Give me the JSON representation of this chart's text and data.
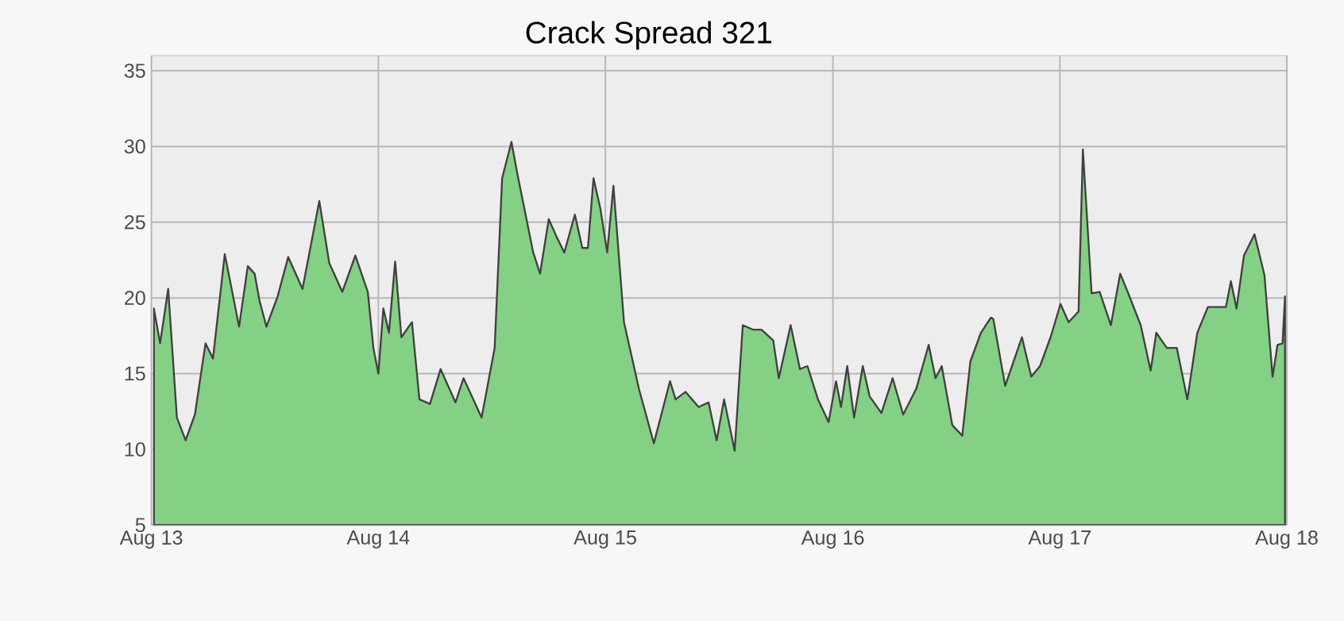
{
  "chart_data": {
    "type": "area",
    "title": "Crack Spread 321",
    "x": [
      "2013-08-05",
      "2013-08-15",
      "2013-08-28",
      "2013-09-11",
      "2013-09-25",
      "2013-10-10",
      "2013-10-27",
      "2013-11-08",
      "2013-11-27",
      "2013-12-20",
      "2014-01-03",
      "2014-01-14",
      "2014-01-22",
      "2014-02-02",
      "2014-02-20",
      "2014-03-09",
      "2014-04-01",
      "2014-04-28",
      "2014-05-14",
      "2014-06-04",
      "2014-06-25",
      "2014-07-15",
      "2014-07-24",
      "2014-08-01",
      "2014-08-09",
      "2014-08-18",
      "2014-08-28",
      "2014-09-07",
      "2014-09-24",
      "2014-10-06",
      "2014-10-23",
      "2014-11-09",
      "2014-12-03",
      "2014-12-16",
      "2015-01-14",
      "2015-02-04",
      "2015-02-16",
      "2015-03-03",
      "2015-03-13",
      "2015-04-07",
      "2015-04-18",
      "2015-05-02",
      "2015-05-15",
      "2015-05-27",
      "2015-06-13",
      "2015-06-25",
      "2015-07-04",
      "2015-07-13",
      "2015-07-24",
      "2015-08-04",
      "2015-08-14",
      "2015-08-31",
      "2015-09-24",
      "2015-10-18",
      "2015-11-13",
      "2015-11-22",
      "2015-12-08",
      "2015-12-29",
      "2016-01-14",
      "2016-01-27",
      "2016-02-08",
      "2016-02-25",
      "2016-03-09",
      "2016-03-26",
      "2016-04-08",
      "2016-04-27",
      "2016-05-06",
      "2016-05-25",
      "2016-06-09",
      "2016-06-21",
      "2016-07-08",
      "2016-07-25",
      "2016-08-06",
      "2016-08-14",
      "2016-08-24",
      "2016-09-04",
      "2016-09-18",
      "2016-09-29",
      "2016-10-18",
      "2016-11-05",
      "2016-11-22",
      "2016-12-13",
      "2017-01-02",
      "2017-01-13",
      "2017-01-23",
      "2017-02-09",
      "2017-02-25",
      "2017-03-10",
      "2017-03-27",
      "2017-04-12",
      "2017-04-16",
      "2017-05-05",
      "2017-06-01",
      "2017-06-16",
      "2017-06-30",
      "2017-07-17",
      "2017-08-02",
      "2017-08-15",
      "2017-08-31",
      "2017-09-07",
      "2017-09-21",
      "2017-10-04",
      "2017-10-22",
      "2017-11-06",
      "2017-11-18",
      "2017-12-09",
      "2017-12-25",
      "2018-01-03",
      "2018-01-20",
      "2018-02-05",
      "2018-02-22",
      "2018-03-10",
      "2018-03-27",
      "2018-04-25",
      "2018-05-03",
      "2018-05-12",
      "2018-05-24",
      "2018-06-10",
      "2018-06-26",
      "2018-07-09",
      "2018-07-17",
      "2018-07-25",
      "2018-07-29"
    ],
    "series": [
      {
        "color": "#84d084",
        "values": [
          19.3,
          17.0,
          20.6,
          12.1,
          10.6,
          12.3,
          17.0,
          16.0,
          22.9,
          18.1,
          22.1,
          21.6,
          19.8,
          18.1,
          20.1,
          22.7,
          20.6,
          26.4,
          22.3,
          20.4,
          22.8,
          20.4,
          16.7,
          15.0,
          19.3,
          17.7,
          22.4,
          17.4,
          18.4,
          13.3,
          13.0,
          15.3,
          13.1,
          14.7,
          12.1,
          16.7,
          27.9,
          30.3,
          28.1,
          23.0,
          21.6,
          25.2,
          24.0,
          23.0,
          25.5,
          23.3,
          23.3,
          27.9,
          25.9,
          23.0,
          27.4,
          18.4,
          14.0,
          10.4,
          14.5,
          13.3,
          13.8,
          12.8,
          13.1,
          10.6,
          13.3,
          9.9,
          18.2,
          17.9,
          17.9,
          17.2,
          14.7,
          18.2,
          15.3,
          15.5,
          13.3,
          11.8,
          14.5,
          12.8,
          15.5,
          12.1,
          15.5,
          13.5,
          12.4,
          14.7,
          12.3,
          14.0,
          16.9,
          14.7,
          15.5,
          11.6,
          10.9,
          15.8,
          17.7,
          18.7,
          18.6,
          14.2,
          17.4,
          14.8,
          15.5,
          17.4,
          19.6,
          18.4,
          19.1,
          29.8,
          20.3,
          20.4,
          18.2,
          21.6,
          20.4,
          18.2,
          15.2,
          17.7,
          16.7,
          16.7,
          13.3,
          17.7,
          19.4,
          19.4,
          21.1,
          19.3,
          22.8,
          24.2,
          21.5,
          14.8,
          16.9,
          17.0,
          20.1
        ]
      }
    ],
    "xlim": [
      "2013-08-01",
      "2018-08-01"
    ],
    "xticks": [
      {
        "value": "2013-08-01",
        "label": "Aug 13"
      },
      {
        "value": "2014-08-01",
        "label": "Aug 14"
      },
      {
        "value": "2015-08-01",
        "label": "Aug 15"
      },
      {
        "value": "2016-08-01",
        "label": "Aug 16"
      },
      {
        "value": "2017-08-01",
        "label": "Aug 17"
      },
      {
        "value": "2018-08-01",
        "label": "Aug 18"
      }
    ],
    "ylim": [
      5,
      36
    ],
    "yticks": [
      5,
      10,
      15,
      20,
      25,
      30,
      35
    ],
    "grid": true
  }
}
